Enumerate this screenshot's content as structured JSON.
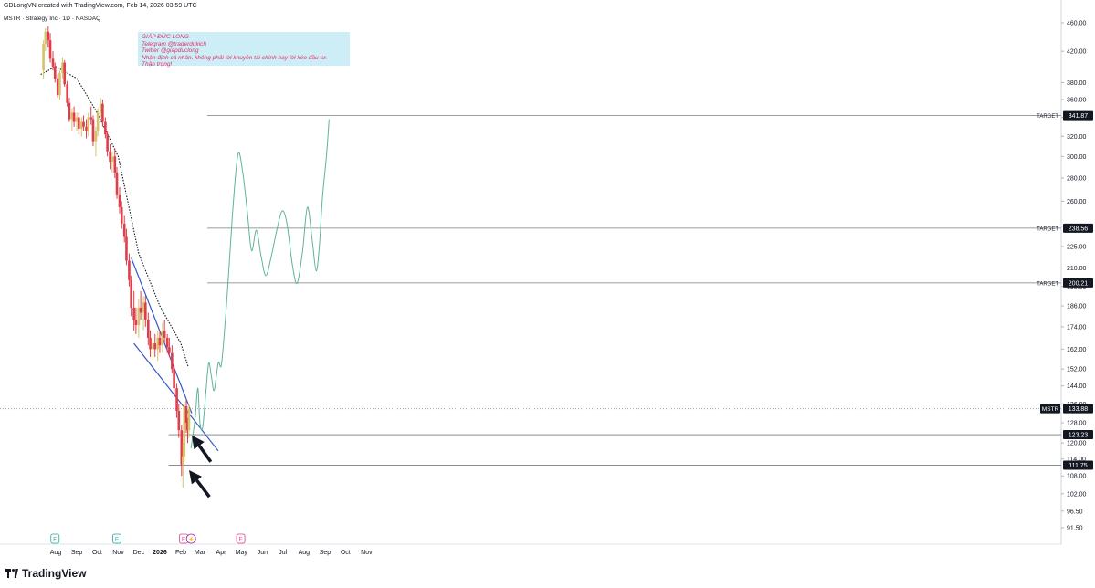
{
  "header": {
    "attribution": "GDLongVN created with TradingView.com, Feb 14, 2026 03:59 UTC",
    "symbol_line": "MSTR · Strategy Inc · 1D · NASDAQ"
  },
  "note": {
    "lines": [
      "GIÁP ĐỨC LONG",
      "Telegram @traderdukich",
      "Twitter @giapduclong",
      "Nhận định cá nhân, không phải lời khuyên tài chính hay lời kéo đầu tư.",
      "Thận trọng!"
    ]
  },
  "brand": {
    "name": "TradingView",
    "logo_icon": "tradingview-logo-icon"
  },
  "colors": {
    "up": "#d4c36a",
    "down": "#e03c4a",
    "wedge": "#3355cc",
    "projection": "#5fb398",
    "ma": "#131722",
    "grid_line": "#787b86"
  },
  "chart_data": {
    "type": "candlestick",
    "title": "",
    "symbol": "MSTR",
    "interval": "1D",
    "exchange": "NASDAQ",
    "y_axis": {
      "scale": "log",
      "range": [
        88,
        480
      ],
      "ticks": [
        "460.00",
        "420.00",
        "380.00",
        "360.00",
        "340.00",
        "320.00",
        "300.00",
        "280.00",
        "260.00",
        "240.00",
        "225.00",
        "210.00",
        "198.00",
        "186.00",
        "174.00",
        "162.00",
        "152.00",
        "144.00",
        "136.00",
        "128.00",
        "120.00",
        "114.00",
        "108.00",
        "102.00",
        "96.50",
        "91.50"
      ]
    },
    "x_axis": {
      "ticks": [
        {
          "label": "Aug",
          "date": "2025-08-01"
        },
        {
          "label": "Sep",
          "date": "2025-09-01"
        },
        {
          "label": "Oct",
          "date": "2025-10-01"
        },
        {
          "label": "Nov",
          "date": "2025-11-01"
        },
        {
          "label": "Dec",
          "date": "2025-12-01"
        },
        {
          "label": "2026",
          "date": "2026-01-01"
        },
        {
          "label": "Feb",
          "date": "2026-02-01"
        },
        {
          "label": "Mar",
          "date": "2026-03-01"
        },
        {
          "label": "Apr",
          "date": "2026-04-01"
        },
        {
          "label": "May",
          "date": "2026-05-01"
        },
        {
          "label": "Jun",
          "date": "2026-06-01"
        },
        {
          "label": "Jul",
          "date": "2026-07-01"
        },
        {
          "label": "Aug",
          "date": "2026-08-01"
        },
        {
          "label": "Sep",
          "date": "2026-09-01"
        },
        {
          "label": "Oct",
          "date": "2026-10-01"
        },
        {
          "label": "Nov",
          "date": "2026-11-01"
        }
      ]
    },
    "candles": [
      [
        "2025-07-14",
        395,
        435,
        385,
        430
      ],
      [
        "2025-07-17",
        430,
        452,
        420,
        447
      ],
      [
        "2025-07-21",
        447,
        455,
        425,
        435
      ],
      [
        "2025-07-24",
        435,
        445,
        405,
        410
      ],
      [
        "2025-07-28",
        410,
        420,
        395,
        400
      ],
      [
        "2025-07-31",
        400,
        405,
        380,
        385
      ],
      [
        "2025-08-04",
        385,
        390,
        362,
        365
      ],
      [
        "2025-08-07",
        365,
        395,
        360,
        392
      ],
      [
        "2025-08-11",
        392,
        412,
        385,
        405
      ],
      [
        "2025-08-14",
        405,
        408,
        375,
        378
      ],
      [
        "2025-08-18",
        378,
        382,
        352,
        356
      ],
      [
        "2025-08-21",
        356,
        362,
        335,
        338
      ],
      [
        "2025-08-25",
        338,
        350,
        325,
        345
      ],
      [
        "2025-08-28",
        345,
        352,
        330,
        335
      ],
      [
        "2025-09-01",
        335,
        345,
        325,
        340
      ],
      [
        "2025-09-04",
        340,
        345,
        322,
        328
      ],
      [
        "2025-09-08",
        328,
        340,
        320,
        335
      ],
      [
        "2025-09-11",
        335,
        342,
        325,
        330
      ],
      [
        "2025-09-15",
        330,
        338,
        318,
        325
      ],
      [
        "2025-09-18",
        325,
        345,
        320,
        340
      ],
      [
        "2025-09-22",
        340,
        352,
        332,
        338
      ],
      [
        "2025-09-25",
        338,
        342,
        310,
        315
      ],
      [
        "2025-09-29",
        315,
        330,
        300,
        325
      ],
      [
        "2025-10-02",
        325,
        350,
        320,
        345
      ],
      [
        "2025-10-06",
        345,
        362,
        340,
        355
      ],
      [
        "2025-10-09",
        355,
        360,
        330,
        335
      ],
      [
        "2025-10-13",
        335,
        340,
        318,
        322
      ],
      [
        "2025-10-16",
        322,
        325,
        300,
        305
      ],
      [
        "2025-10-20",
        305,
        312,
        288,
        295
      ],
      [
        "2025-10-23",
        295,
        305,
        285,
        300
      ],
      [
        "2025-10-27",
        300,
        308,
        280,
        285
      ],
      [
        "2025-10-30",
        285,
        290,
        262,
        265
      ],
      [
        "2025-11-03",
        265,
        272,
        250,
        255
      ],
      [
        "2025-11-06",
        255,
        260,
        238,
        242
      ],
      [
        "2025-11-10",
        242,
        248,
        228,
        232
      ],
      [
        "2025-11-13",
        232,
        238,
        212,
        215
      ],
      [
        "2025-11-17",
        215,
        220,
        198,
        202
      ],
      [
        "2025-11-20",
        202,
        205,
        180,
        185
      ],
      [
        "2025-11-24",
        185,
        195,
        172,
        178
      ],
      [
        "2025-11-27",
        178,
        185,
        170,
        175
      ],
      [
        "2025-12-01",
        175,
        190,
        168,
        185
      ],
      [
        "2025-12-04",
        185,
        195,
        178,
        182
      ],
      [
        "2025-12-08",
        182,
        192,
        172,
        188
      ],
      [
        "2025-12-11",
        188,
        192,
        174,
        178
      ],
      [
        "2025-12-15",
        178,
        182,
        164,
        168
      ],
      [
        "2025-12-18",
        168,
        172,
        158,
        162
      ],
      [
        "2025-12-22",
        162,
        168,
        156,
        165
      ],
      [
        "2025-12-25",
        165,
        170,
        158,
        162
      ],
      [
        "2025-12-29",
        162,
        172,
        156,
        168
      ],
      [
        "2026-01-01",
        168,
        172,
        160,
        164
      ],
      [
        "2026-01-05",
        164,
        176,
        160,
        172
      ],
      [
        "2026-01-08",
        172,
        178,
        165,
        168
      ],
      [
        "2026-01-12",
        168,
        170,
        160,
        163
      ],
      [
        "2026-01-15",
        163,
        168,
        158,
        160
      ],
      [
        "2026-01-19",
        160,
        164,
        150,
        152
      ],
      [
        "2026-01-22",
        152,
        154,
        140,
        143
      ],
      [
        "2026-01-26",
        143,
        145,
        130,
        133
      ],
      [
        "2026-01-29",
        133,
        136,
        122,
        125
      ],
      [
        "2026-02-02",
        125,
        127,
        108,
        112
      ],
      [
        "2026-02-04",
        112,
        120,
        104,
        115
      ],
      [
        "2026-02-06",
        115,
        137,
        113,
        135
      ],
      [
        "2026-02-09",
        135,
        138,
        124,
        128
      ],
      [
        "2026-02-11",
        128,
        130,
        120,
        125
      ],
      [
        "2026-02-13",
        125,
        136,
        122,
        133.88
      ]
    ],
    "moving_average": [
      [
        "2025-07-10",
        390
      ],
      [
        "2025-08-01",
        400
      ],
      [
        "2025-09-01",
        385
      ],
      [
        "2025-10-01",
        345
      ],
      [
        "2025-11-01",
        300
      ],
      [
        "2025-12-01",
        220
      ],
      [
        "2026-01-01",
        186
      ],
      [
        "2026-02-01",
        165
      ],
      [
        "2026-02-12",
        153
      ]
    ],
    "wedge_lines": [
      {
        "from": [
          "2025-11-20",
          217
        ],
        "to": [
          "2026-02-17",
          132
        ]
      },
      {
        "from": [
          "2025-11-24",
          165
        ],
        "to": [
          "2026-03-28",
          117
        ]
      }
    ],
    "projection_path": [
      [
        "2026-02-16",
        118
      ],
      [
        "2026-02-22",
        130
      ],
      [
        "2026-02-26",
        143
      ],
      [
        "2026-03-01",
        128
      ],
      [
        "2026-03-05",
        126
      ],
      [
        "2026-03-10",
        142
      ],
      [
        "2026-03-14",
        155
      ],
      [
        "2026-03-18",
        148
      ],
      [
        "2026-03-22",
        142
      ],
      [
        "2026-03-28",
        155
      ],
      [
        "2026-04-02",
        155
      ],
      [
        "2026-04-10",
        192
      ],
      [
        "2026-04-18",
        250
      ],
      [
        "2026-04-26",
        302
      ],
      [
        "2026-05-03",
        285
      ],
      [
        "2026-05-10",
        250
      ],
      [
        "2026-05-16",
        222
      ],
      [
        "2026-05-23",
        237
      ],
      [
        "2026-05-30",
        218
      ],
      [
        "2026-06-06",
        205
      ],
      [
        "2026-06-14",
        218
      ],
      [
        "2026-06-22",
        237
      ],
      [
        "2026-06-30",
        252
      ],
      [
        "2026-07-07",
        242
      ],
      [
        "2026-07-15",
        212
      ],
      [
        "2026-07-22",
        200
      ],
      [
        "2026-07-30",
        222
      ],
      [
        "2026-08-06",
        255
      ],
      [
        "2026-08-13",
        230
      ],
      [
        "2026-08-19",
        208
      ],
      [
        "2026-08-24",
        228
      ],
      [
        "2026-08-28",
        262
      ],
      [
        "2026-09-03",
        300
      ],
      [
        "2026-09-07",
        338
      ]
    ],
    "horizontal_levels": [
      {
        "price": 341.87,
        "label": "TARGET",
        "value_label": "341.87",
        "from": "2026-03-12"
      },
      {
        "price": 238.56,
        "label": "TARGET",
        "value_label": "238.56",
        "from": "2026-03-12"
      },
      {
        "price": 200.21,
        "label": "TARGET",
        "value_label": "200.21",
        "from": "2026-03-12"
      },
      {
        "price": 123.23,
        "label": "",
        "value_label": "123.23",
        "from": "2026-01-14"
      },
      {
        "price": 111.75,
        "label": "",
        "value_label": "111.75",
        "from": "2026-01-14"
      }
    ],
    "last_price": {
      "symbol": "MSTR",
      "price": 133.88,
      "value_label": "133.88"
    },
    "arrows": [
      {
        "tip": [
          "2026-02-17",
          123
        ],
        "tail": [
          "2026-03-17",
          113
        ]
      },
      {
        "tip": [
          "2026-02-13",
          110
        ],
        "tail": [
          "2026-03-15",
          101
        ]
      }
    ],
    "events": [
      {
        "date": "2025-07-31",
        "label": "E"
      },
      {
        "date": "2025-10-30",
        "label": "E"
      },
      {
        "date": "2026-02-05",
        "label": "E"
      },
      {
        "date": "2026-02-16",
        "label": "⚡"
      },
      {
        "date": "2026-04-30",
        "label": "E"
      }
    ]
  }
}
